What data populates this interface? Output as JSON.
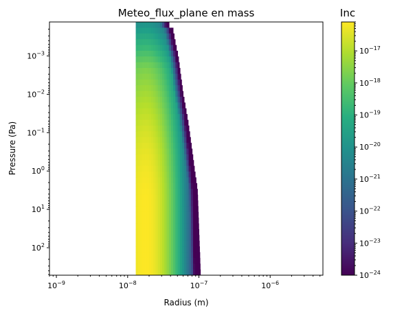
{
  "chart_data": {
    "type": "heatmap",
    "title": "Meteo_flux_plane en mass",
    "xlabel": "Radius (m)",
    "ylabel": "Pressure (Pa)",
    "x_scale": "log",
    "y_scale": "log",
    "y_inverted": true,
    "xlim": [
      8e-10,
      5.5e-06
    ],
    "ylim": [
      520,
      0.00013
    ],
    "x_ticks": [
      {
        "value": 1e-09,
        "base": "10",
        "exp": "−9"
      },
      {
        "value": 1e-08,
        "base": "10",
        "exp": "−8"
      },
      {
        "value": 1e-07,
        "base": "10",
        "exp": "−7"
      },
      {
        "value": 1e-06,
        "base": "10",
        "exp": "−6"
      }
    ],
    "y_ticks": [
      {
        "value": 0.001,
        "base": "10",
        "exp": "−3"
      },
      {
        "value": 0.01,
        "base": "10",
        "exp": "−2"
      },
      {
        "value": 0.1,
        "base": "10",
        "exp": "−1"
      },
      {
        "value": 1,
        "base": "10",
        "exp": "0"
      },
      {
        "value": 10,
        "base": "10",
        "exp": "1"
      },
      {
        "value": 100,
        "base": "10",
        "exp": "2"
      }
    ],
    "colorbar": {
      "label": "Inc",
      "scale": "log",
      "colormap": "viridis",
      "range": [
        1e-24,
        8e-17
      ],
      "ticks": [
        {
          "value": 1e-24,
          "base": "10",
          "exp": "−24"
        },
        {
          "value": 1e-23,
          "base": "10",
          "exp": "−23"
        },
        {
          "value": 1e-22,
          "base": "10",
          "exp": "−22"
        },
        {
          "value": 1e-21,
          "base": "10",
          "exp": "−21"
        },
        {
          "value": 1e-20,
          "base": "10",
          "exp": "−20"
        },
        {
          "value": 1e-19,
          "base": "10",
          "exp": "−19"
        },
        {
          "value": 1e-18,
          "base": "10",
          "exp": "−18"
        },
        {
          "value": 1e-17,
          "base": "10",
          "exp": "−17"
        }
      ]
    },
    "data_extent": {
      "radius_min": 1.3e-08,
      "radius_max_by_pressure": [
        {
          "pressure": 0.00013,
          "radius": 3.5e-08
        },
        {
          "pressure": 0.0002,
          "radius": 4.3e-08
        },
        {
          "pressure": 0.0005,
          "radius": 4.7e-08
        },
        {
          "pressure": 0.001,
          "radius": 5.1e-08
        },
        {
          "pressure": 0.003,
          "radius": 5.5e-08
        },
        {
          "pressure": 0.01,
          "radius": 6e-08
        },
        {
          "pressure": 0.05,
          "radius": 7e-08
        },
        {
          "pressure": 0.3,
          "radius": 8e-08
        },
        {
          "pressure": 1,
          "radius": 8.7e-08
        },
        {
          "pressure": 3,
          "radius": 9.5e-08
        },
        {
          "pressure": 520,
          "radius": 1.05e-07
        }
      ],
      "peak_radius": 1.8e-08
    }
  }
}
